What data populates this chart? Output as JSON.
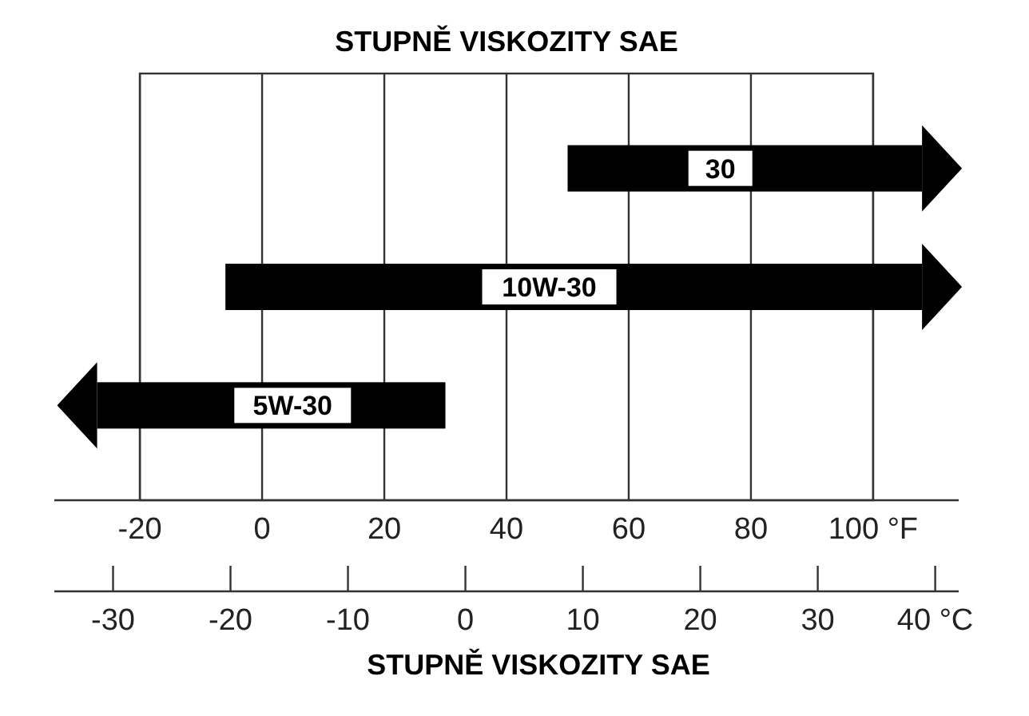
{
  "chart_data": {
    "type": "bar",
    "orientation": "horizontal",
    "title": "STUPNĚ VISKOZITY SAE",
    "x2label": "STUPNĚ VISKOZITY SAE",
    "categories": [
      "30",
      "10W-30",
      "5W-30"
    ],
    "base": [
      50,
      -6,
      -27
    ],
    "values": [
      58,
      114,
      57
    ],
    "color": "#000000",
    "xlim": [
      -34,
      114
    ],
    "xticks": [
      -20,
      0,
      20,
      40,
      60,
      80,
      {
        "value": 100,
        "label": "100 °F"
      }
    ],
    "x2lim": [
      -35,
      42
    ],
    "x2ticks": [
      -30,
      -20,
      -10,
      0,
      10,
      20,
      30,
      {
        "value": 40,
        "label": "40 °C"
      }
    ],
    "grid": "x"
  }
}
